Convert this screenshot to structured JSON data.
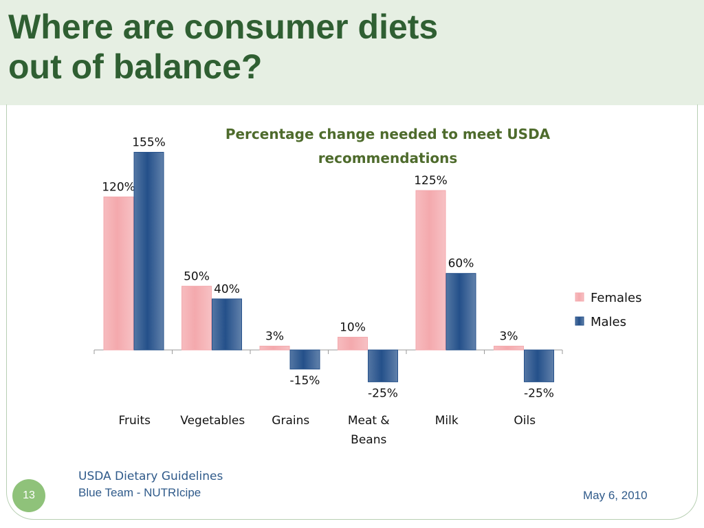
{
  "slide": {
    "title_line1": "Where are consumer diets",
    "title_line2": "out of balance?",
    "footer_source": "USDA Dietary Guidelines",
    "footer_team": "Blue Team - NUTRIcipe",
    "date": "May 6, 2010",
    "page_number": "13",
    "colors": {
      "title": "#2f5f32",
      "band": "#e6efe3",
      "footer_text": "#2f5a8a",
      "badge": "#8fc27a"
    }
  },
  "chart_data": {
    "type": "bar",
    "title_lines": [
      "Percentage change needed to meet USDA",
      "recommendations"
    ],
    "categories": [
      [
        "Fruits"
      ],
      [
        "Vegetables"
      ],
      [
        "Grains"
      ],
      [
        "Meat &",
        "Beans"
      ],
      [
        "Milk"
      ],
      [
        "Oils"
      ]
    ],
    "series": [
      {
        "name": "Females",
        "values": [
          120,
          50,
          3,
          10,
          125,
          3
        ],
        "labels": [
          "120%",
          "50%",
          "3%",
          "10%",
          "125%",
          "3%"
        ],
        "color": "#f4a9ad"
      },
      {
        "name": "Males",
        "values": [
          155,
          40,
          -15,
          -25,
          60,
          -25
        ],
        "labels": [
          "155%",
          "40%",
          "-15%",
          "-25%",
          "60%",
          "-25%"
        ],
        "color": "#24508a"
      }
    ],
    "unit": "%",
    "legend_position": "right",
    "grid": false,
    "ylim": [
      -25,
      160
    ]
  }
}
